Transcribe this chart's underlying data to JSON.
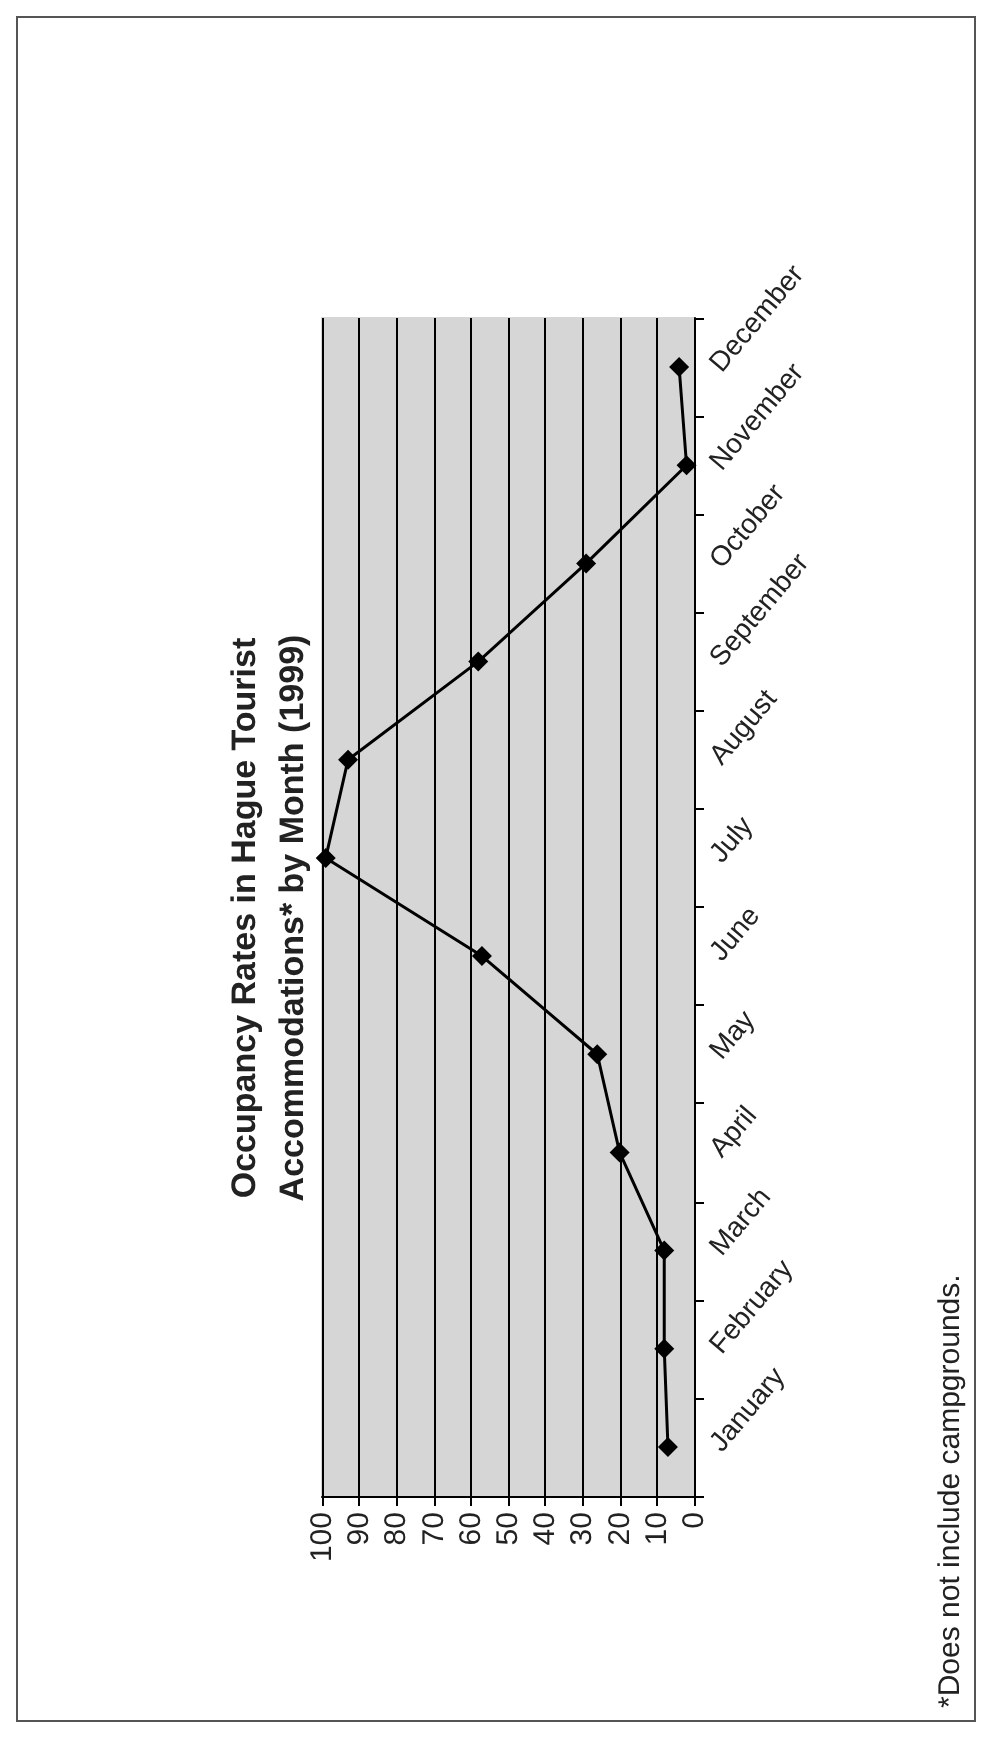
{
  "chart_data": {
    "type": "line",
    "orientation": "horizontal",
    "title": "Occupancy Rates in Hague Tourist\nAccommodations* by Month (1999)",
    "categories": [
      "December",
      "November",
      "October",
      "September",
      "August",
      "July",
      "June",
      "May",
      "April",
      "March",
      "February",
      "January"
    ],
    "series": [
      {
        "color": "#000000",
        "values": [
          4,
          2,
          29,
          58,
          93,
          99,
          57,
          26,
          20,
          8,
          8,
          7
        ]
      }
    ],
    "xlim": [
      100,
      0
    ],
    "xticks": [
      100,
      90,
      80,
      70,
      60,
      50,
      40,
      30,
      20,
      10,
      0
    ],
    "grid": "x",
    "marker": "diamond",
    "line_style": "solid",
    "annotations": [
      "*Does not include campgrounds."
    ]
  }
}
